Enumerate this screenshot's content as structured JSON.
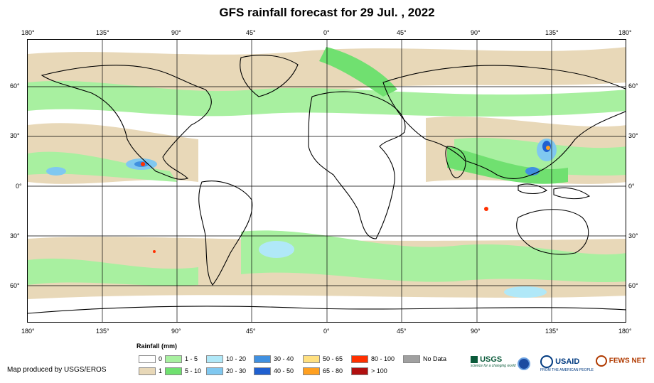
{
  "title": "GFS rainfall forecast for 29 Jul. , 2022",
  "lon_labels": [
    "180°",
    "135°",
    "90°",
    "45°",
    "0°",
    "45°",
    "90°",
    "135°",
    "180°"
  ],
  "lat_labels": [
    "60°",
    "30°",
    "0°",
    "30°",
    "60°"
  ],
  "legend": {
    "title": "Rainfall (mm)",
    "items": [
      {
        "label": "0",
        "color": "#ffffff"
      },
      {
        "label": "1",
        "color": "#e8d8b8"
      },
      {
        "label": "1 - 5",
        "color": "#a8f0a0"
      },
      {
        "label": "5 - 10",
        "color": "#70e070"
      },
      {
        "label": "10 - 20",
        "color": "#b0e8f8"
      },
      {
        "label": "20 - 30",
        "color": "#80c8f0"
      },
      {
        "label": "30 - 40",
        "color": "#4090e0"
      },
      {
        "label": "40 - 50",
        "color": "#2060d0"
      },
      {
        "label": "50 - 65",
        "color": "#ffe080"
      },
      {
        "label": "65 - 80",
        "color": "#ffa020"
      },
      {
        "label": "80 - 100",
        "color": "#ff3000"
      },
      {
        "label": "> 100",
        "color": "#b01010"
      },
      {
        "label": "No Data",
        "color": "#a0a0a0"
      }
    ]
  },
  "credit": "Map produced by USGS/EROS",
  "logos": {
    "usgs": "USGS",
    "usgs_tagline": "science for a changing world",
    "usaid": "USAID",
    "usaid_tagline": "FROM THE AMERICAN PEOPLE",
    "fewsnet": "FEWS NET"
  }
}
